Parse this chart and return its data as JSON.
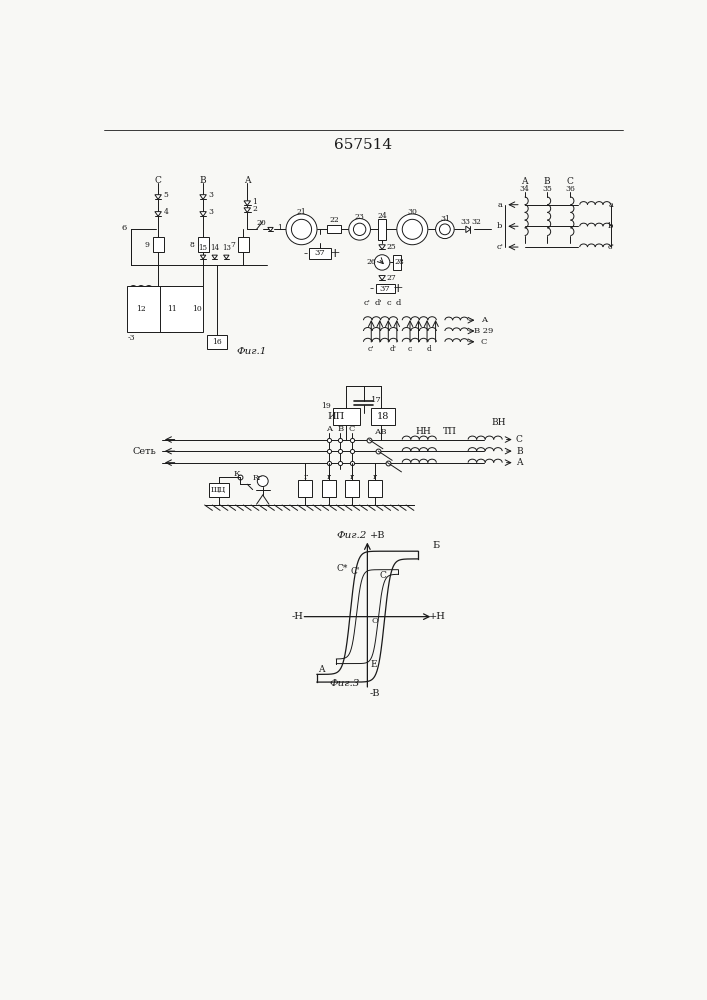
{
  "title": "657514",
  "fig1_label": "Фиг.1",
  "fig2_label": "Фиг.2",
  "fig3_label": "Фиг.3",
  "bg_color": "#f8f8f5",
  "line_color": "#1a1a1a",
  "lw": 0.9,
  "tlw": 0.7
}
